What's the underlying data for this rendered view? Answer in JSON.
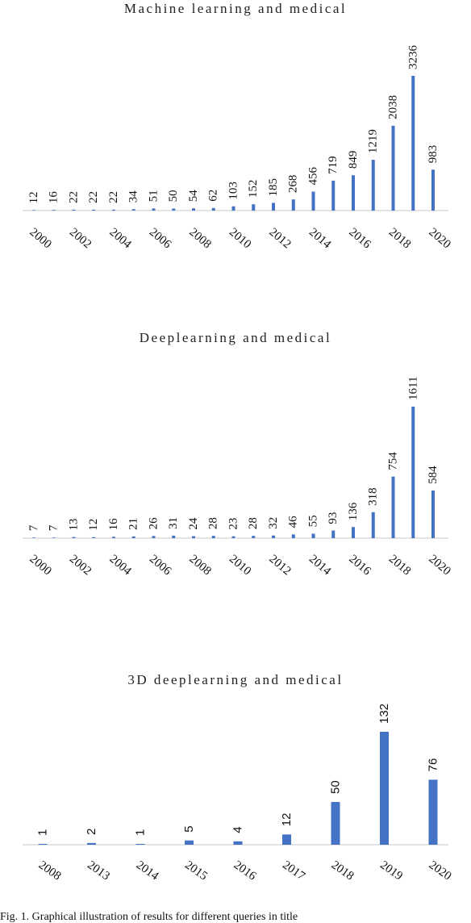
{
  "caption": "Fig. 1. Graphical illustration of results for different queries in title",
  "chart_data": [
    {
      "type": "bar",
      "title": "Machine learning and medical",
      "categories": [
        "2000",
        "2001",
        "2002",
        "2003",
        "2004",
        "2005",
        "2006",
        "2007",
        "2008",
        "2009",
        "2010",
        "2011",
        "2012",
        "2013",
        "2014",
        "2015",
        "2016",
        "2017",
        "2018",
        "2019",
        "2020"
      ],
      "x_tick_labels": [
        "2000",
        "2002",
        "2004",
        "2006",
        "2008",
        "2010",
        "2012",
        "2014",
        "2016",
        "2018",
        "2020"
      ],
      "values": [
        12,
        16,
        22,
        22,
        22,
        34,
        51,
        50,
        54,
        62,
        103,
        152,
        185,
        268,
        456,
        719,
        849,
        1219,
        2038,
        3236,
        983
      ],
      "ylim": [
        0,
        3236
      ],
      "color": "#4472c4",
      "grid": false,
      "legend": "none"
    },
    {
      "type": "bar",
      "title": "Deeplearning and medical",
      "categories": [
        "2000",
        "2001",
        "2002",
        "2003",
        "2004",
        "2005",
        "2006",
        "2007",
        "2008",
        "2009",
        "2010",
        "2011",
        "2012",
        "2013",
        "2014",
        "2015",
        "2016",
        "2017",
        "2018",
        "2019",
        "2020"
      ],
      "x_tick_labels": [
        "2000",
        "2002",
        "2004",
        "2006",
        "2008",
        "2010",
        "2012",
        "2014",
        "2016",
        "2018",
        "2020"
      ],
      "values": [
        7,
        7,
        13,
        12,
        16,
        21,
        26,
        31,
        24,
        28,
        23,
        28,
        32,
        46,
        55,
        93,
        136,
        318,
        754,
        1611,
        584
      ],
      "ylim": [
        0,
        1611
      ],
      "color": "#4472c4",
      "grid": false,
      "legend": "none"
    },
    {
      "type": "bar",
      "title": "3D deeplearning and medical",
      "categories": [
        "2008",
        "2013",
        "2014",
        "2015",
        "2016",
        "2017",
        "2018",
        "2019",
        "2020"
      ],
      "x_tick_labels": [
        "2008",
        "2013",
        "2014",
        "2015",
        "2016",
        "2017",
        "2018",
        "2019",
        "2020"
      ],
      "values": [
        1,
        2,
        1,
        5,
        4,
        12,
        50,
        132,
        76
      ],
      "ylim": [
        0,
        132
      ],
      "color": "#4472c4",
      "grid": false,
      "legend": "none"
    }
  ]
}
